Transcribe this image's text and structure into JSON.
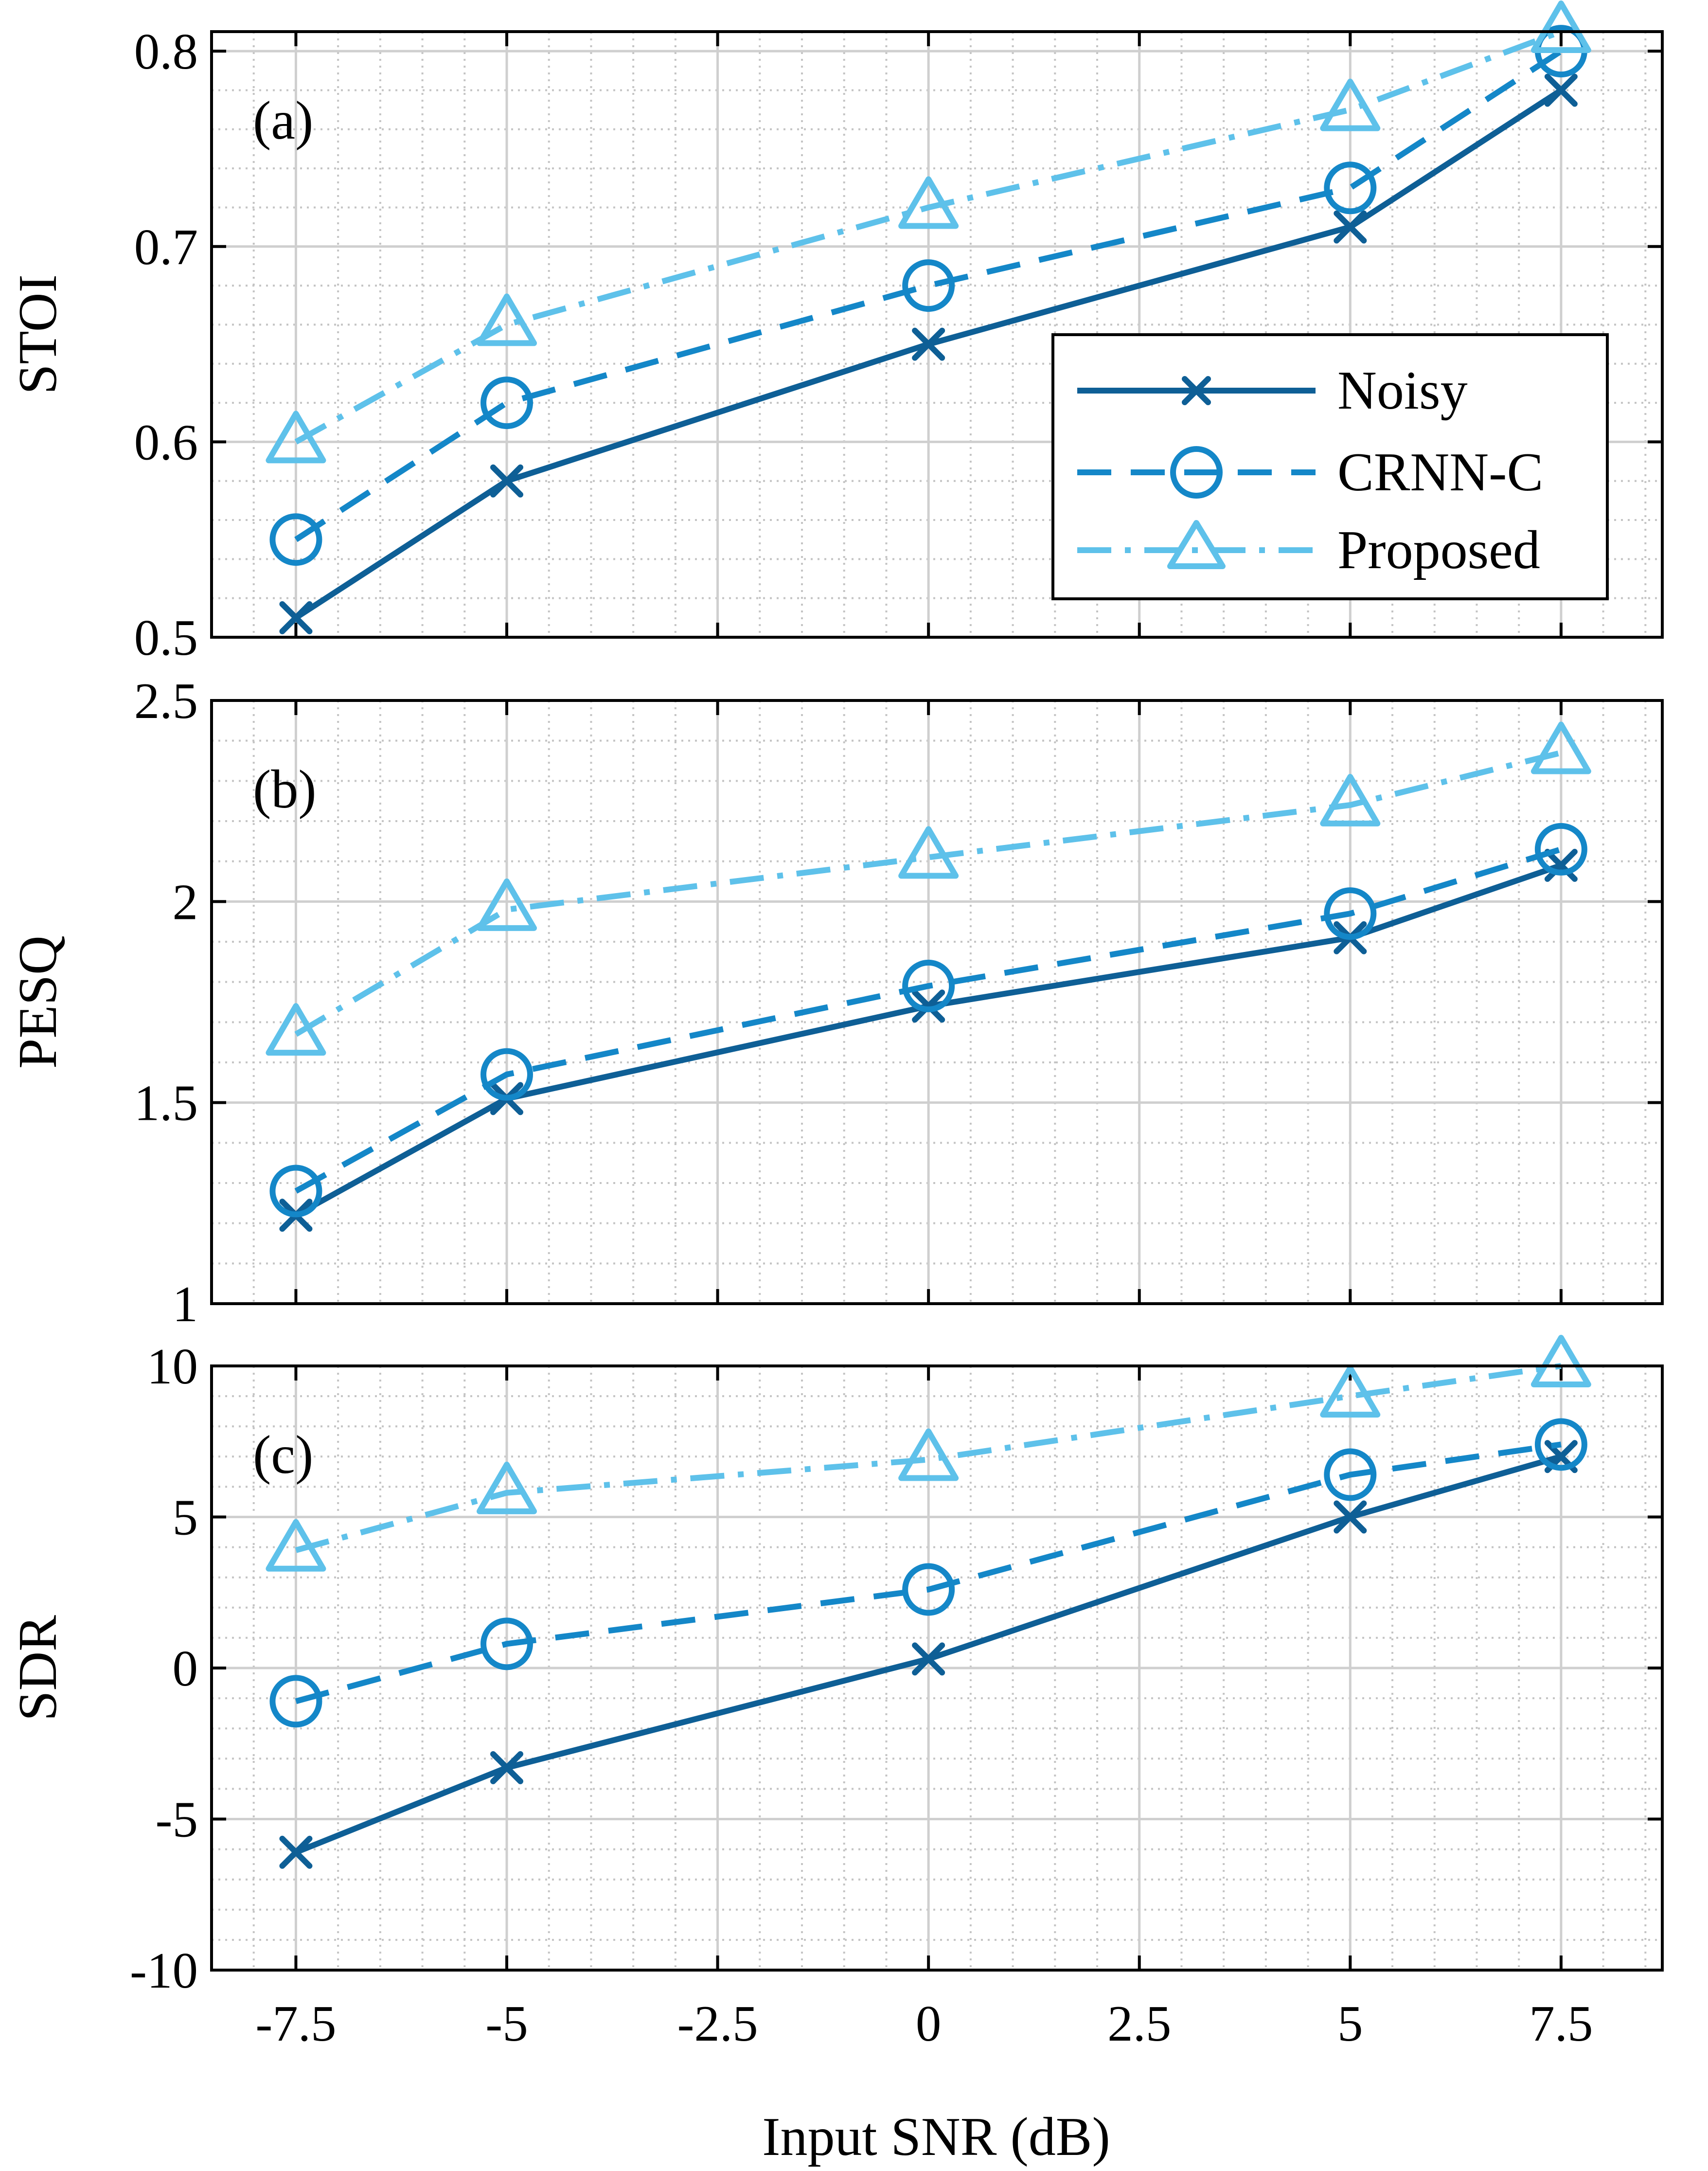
{
  "chart_data": {
    "type": "line",
    "xlabel": "Input SNR (dB)",
    "x": [
      -7.5,
      -5,
      0,
      5,
      7.5
    ],
    "xlim": [
      -8.5,
      8.7
    ],
    "xticks": [
      -7.5,
      -5,
      -2.5,
      0,
      2.5,
      5,
      7.5
    ],
    "xtick_labels": [
      "-7.5",
      "-5",
      "-2.5",
      "0",
      "2.5",
      "5",
      "7.5"
    ],
    "legend": {
      "placement": "panel (a), center-right",
      "entries": [
        "Noisy",
        "CRNN-C",
        "Proposed"
      ]
    },
    "series_styles": [
      {
        "name": "Noisy",
        "color": "#0e5f96",
        "marker": "x",
        "line": "solid"
      },
      {
        "name": "CRNN-C",
        "color": "#1487c8",
        "marker": "circle",
        "line": "dashed"
      },
      {
        "name": "Proposed",
        "color": "#5ec1ea",
        "marker": "triangle",
        "line": "dash-dot"
      }
    ],
    "panels": [
      {
        "label": "(a)",
        "ylabel": "STOI",
        "ylim": [
          0.5,
          0.81
        ],
        "yticks": [
          0.5,
          0.6,
          0.7,
          0.8
        ],
        "ytick_labels": [
          "0.5",
          "0.6",
          "0.7",
          "0.8"
        ],
        "grid": true,
        "series": [
          {
            "name": "Noisy",
            "values": [
              0.51,
              0.58,
              0.65,
              0.71,
              0.78
            ]
          },
          {
            "name": "CRNN-C",
            "values": [
              0.55,
              0.62,
              0.68,
              0.73,
              0.8
            ]
          },
          {
            "name": "Proposed",
            "values": [
              0.6,
              0.66,
              0.72,
              0.77,
              0.81
            ]
          }
        ]
      },
      {
        "label": "(b)",
        "ylabel": "PESQ",
        "ylim": [
          1,
          2.5
        ],
        "yticks": [
          1,
          1.5,
          2,
          2.5
        ],
        "ytick_labels": [
          "1",
          "1.5",
          "2",
          "2.5"
        ],
        "grid": true,
        "series": [
          {
            "name": "Noisy",
            "values": [
              1.22,
              1.51,
              1.74,
              1.91,
              2.09
            ]
          },
          {
            "name": "CRNN-C",
            "values": [
              1.28,
              1.57,
              1.79,
              1.97,
              2.13
            ]
          },
          {
            "name": "Proposed",
            "values": [
              1.67,
              1.98,
              2.11,
              2.24,
              2.37
            ]
          }
        ]
      },
      {
        "label": "(c)",
        "ylabel": "SDR",
        "ylim": [
          -10,
          10
        ],
        "yticks": [
          -10,
          -5,
          0,
          5,
          10
        ],
        "ytick_labels": [
          "-10",
          "-5",
          "0",
          "5",
          "10"
        ],
        "grid": true,
        "series": [
          {
            "name": "Noisy",
            "values": [
              -6.1,
              -3.3,
              0.3,
              5.0,
              7.0
            ]
          },
          {
            "name": "CRNN-C",
            "values": [
              -1.1,
              0.8,
              2.6,
              6.4,
              7.4
            ]
          },
          {
            "name": "Proposed",
            "values": [
              3.9,
              5.8,
              6.9,
              9.0,
              10.0
            ]
          }
        ]
      }
    ]
  }
}
